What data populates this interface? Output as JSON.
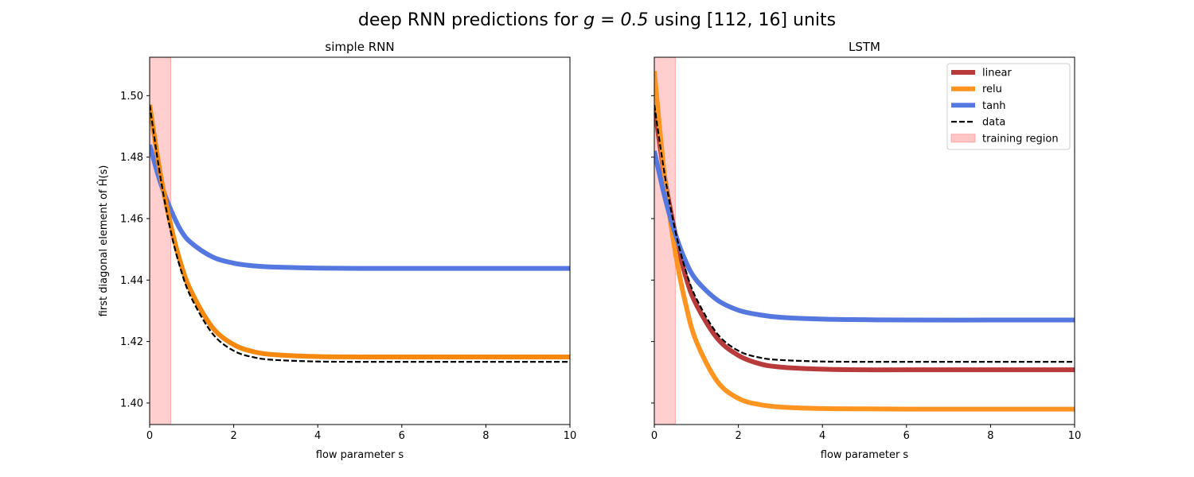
{
  "figure": {
    "title_prefix": "deep RNN predictions for ",
    "title_math": "g = 0.5",
    "title_suffix": " using [112, 16] units"
  },
  "colors": {
    "linear": "#b83a3a",
    "relu": "#ff9520",
    "relu_left": "#f5880f",
    "tanh": "#5578e0",
    "data": "#000000",
    "training_region": "#ffb3b3"
  },
  "legend": {
    "placement": "top-right",
    "entries": [
      "linear",
      "relu",
      "tanh",
      "data",
      "training region"
    ]
  },
  "chart_data": [
    {
      "type": "line",
      "title": "simple RNN",
      "xlabel": "flow parameter s",
      "ylabel": "first diagonal element of Ĥ(s)",
      "xlim": [
        0,
        10
      ],
      "ylim": [
        1.393,
        1.5125
      ],
      "xticks": [
        "0",
        "2",
        "4",
        "6",
        "8",
        "10"
      ],
      "yticks": [
        "1.40",
        "1.42",
        "1.44",
        "1.46",
        "1.48",
        "1.50"
      ],
      "shaded_region": {
        "name": "training region",
        "x": [
          0,
          0.5
        ]
      },
      "x": [
        0,
        0.25,
        0.5,
        0.75,
        1,
        1.5,
        2,
        2.5,
        3,
        4,
        5,
        6,
        8,
        10
      ],
      "series": [
        {
          "name": "tanh",
          "values": [
            1.484,
            1.472,
            1.463,
            1.456,
            1.452,
            1.4475,
            1.4455,
            1.4446,
            1.4442,
            1.4439,
            1.4438,
            1.4438,
            1.4438,
            1.4438
          ]
        },
        {
          "name": "relu",
          "values": [
            1.497,
            1.475,
            1.458,
            1.445,
            1.436,
            1.4245,
            1.419,
            1.4166,
            1.4157,
            1.4151,
            1.415,
            1.415,
            1.415,
            1.415
          ]
        },
        {
          "name": "data",
          "values": [
            1.497,
            1.474,
            1.456,
            1.443,
            1.434,
            1.4225,
            1.417,
            1.4148,
            1.414,
            1.4135,
            1.4134,
            1.4134,
            1.4134,
            1.4134
          ]
        }
      ]
    },
    {
      "type": "line",
      "title": "LSTM",
      "xlabel": "flow parameter s",
      "ylabel": "",
      "xlim": [
        0,
        10
      ],
      "ylim": [
        1.393,
        1.5125
      ],
      "xticks": [
        "0",
        "2",
        "4",
        "6",
        "8",
        "10"
      ],
      "yticks": [
        "1.40",
        "1.42",
        "1.44",
        "1.46",
        "1.48",
        "1.50"
      ],
      "shaded_region": {
        "name": "training region",
        "x": [
          0,
          0.5
        ]
      },
      "x": [
        0,
        0.25,
        0.5,
        0.75,
        1,
        1.5,
        2,
        2.5,
        3,
        4,
        5,
        6,
        8,
        10
      ],
      "series": [
        {
          "name": "linear",
          "values": [
            1.497,
            1.473,
            1.455,
            1.441,
            1.432,
            1.421,
            1.4155,
            1.4128,
            1.4117,
            1.411,
            1.4108,
            1.4108,
            1.4108,
            1.4108
          ]
        },
        {
          "name": "relu",
          "values": [
            1.508,
            1.473,
            1.449,
            1.432,
            1.42,
            1.407,
            1.4015,
            1.3995,
            1.3987,
            1.3982,
            1.3981,
            1.398,
            1.398,
            1.398
          ]
        },
        {
          "name": "tanh",
          "values": [
            1.482,
            1.467,
            1.455,
            1.446,
            1.44,
            1.4335,
            1.4302,
            1.4287,
            1.4279,
            1.4273,
            1.4271,
            1.427,
            1.427,
            1.427
          ]
        },
        {
          "name": "data",
          "values": [
            1.497,
            1.474,
            1.456,
            1.443,
            1.434,
            1.4225,
            1.417,
            1.4148,
            1.414,
            1.4135,
            1.4134,
            1.4134,
            1.4134,
            1.4134
          ]
        }
      ]
    }
  ]
}
